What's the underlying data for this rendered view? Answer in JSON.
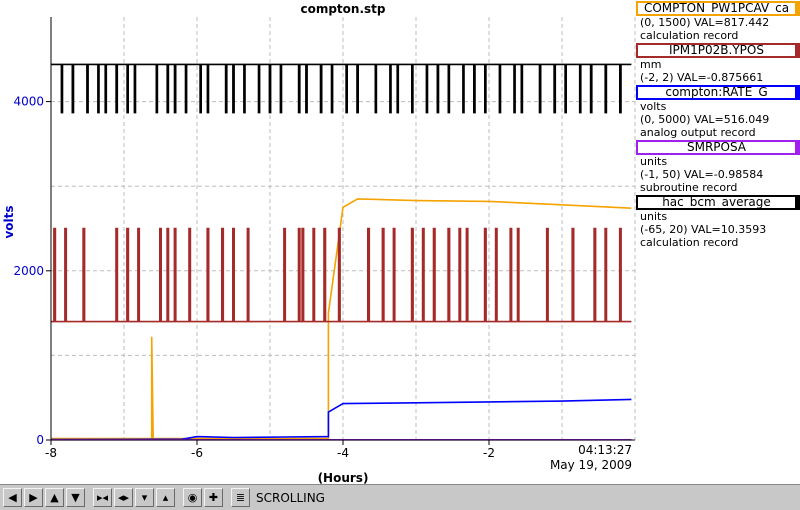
{
  "chart_data": {
    "type": "line",
    "title": "compton.stp",
    "xlabel": "(Hours)",
    "ylabel": "volts",
    "xlim": [
      -8,
      0
    ],
    "ylim": [
      0,
      5000
    ],
    "x_ticks": [
      -8,
      -6,
      -4,
      -2
    ],
    "y_ticks": [
      0,
      2000,
      4000
    ],
    "grid": true,
    "end_time": "04:13:27",
    "end_date": "May 19, 2009",
    "series": [
      {
        "name": "COMPTON_PW1PCAV_ca",
        "color": "#f5a300",
        "points": [
          [
            -8,
            17
          ],
          [
            -6.62,
            17
          ],
          [
            -6.62,
            1220
          ],
          [
            -6.6,
            17
          ],
          [
            -4.2,
            17
          ],
          [
            -4.2,
            1500
          ],
          [
            -4.0,
            2750
          ],
          [
            -3.8,
            2850
          ],
          [
            -3.0,
            2830
          ],
          [
            -2.0,
            2820
          ],
          [
            -1.0,
            2780
          ],
          [
            -0.05,
            2740
          ]
        ]
      },
      {
        "name": "IPM1P02B.YPOS",
        "color": "#a52a2a",
        "base": 1400,
        "spike_top": 2500,
        "spikes": [
          -7.95,
          -7.8,
          -7.55,
          -7.1,
          -6.95,
          -6.8,
          -6.5,
          -6.4,
          -6.3,
          -6.1,
          -5.85,
          -5.65,
          -5.5,
          -5.3,
          -4.8,
          -4.6,
          -4.55,
          -4.4,
          -4.25,
          -4.05,
          -3.65,
          -3.45,
          -3.3,
          -3.05,
          -2.9,
          -2.75,
          -2.55,
          -2.4,
          -2.3,
          -2.05,
          -1.9,
          -1.7,
          -1.6,
          -1.2,
          -0.85,
          -0.55,
          -0.4,
          -0.2
        ]
      },
      {
        "name": "compton:RATE_G",
        "color": "#0000ff",
        "points": [
          [
            -8,
            5
          ],
          [
            -6.2,
            10
          ],
          [
            -6.0,
            40
          ],
          [
            -5.5,
            30
          ],
          [
            -4.8,
            35
          ],
          [
            -4.2,
            40
          ],
          [
            -4.2,
            330
          ],
          [
            -4.0,
            430
          ],
          [
            -3.0,
            440
          ],
          [
            -2.0,
            450
          ],
          [
            -1.0,
            460
          ],
          [
            -0.05,
            480
          ]
        ]
      },
      {
        "name": "SMRPOSA",
        "color": "#a020f0",
        "points": [
          [
            -8,
            2
          ],
          [
            -0.05,
            2
          ]
        ]
      },
      {
        "name": "hac_bcm_average",
        "color": "#000000",
        "base": 4440,
        "dip_bottom": 3870,
        "dips": [
          -7.85,
          -7.7,
          -7.5,
          -7.35,
          -7.25,
          -7.1,
          -6.95,
          -6.85,
          -6.55,
          -6.4,
          -6.3,
          -6.15,
          -5.95,
          -5.85,
          -5.6,
          -5.5,
          -5.35,
          -5.15,
          -5.0,
          -4.85,
          -4.6,
          -4.5,
          -4.3,
          -4.15,
          -3.95,
          -3.8,
          -3.55,
          -3.35,
          -3.25,
          -3.05,
          -2.85,
          -2.7,
          -2.55,
          -2.35,
          -2.2,
          -2.05,
          -1.85,
          -1.65,
          -1.55,
          -1.3,
          -1.1,
          -0.95,
          -0.75,
          -0.6,
          -0.4,
          -0.2
        ]
      }
    ]
  },
  "legend": [
    {
      "name": "COMPTON_PW1PCAV_ca",
      "color": "#f5a300",
      "lines": [
        "(0, 1500) VAL=817.442",
        "calculation record"
      ]
    },
    {
      "name": "IPM1P02B.YPOS",
      "color": "#a52a2a",
      "lines": [
        "mm",
        "(-2, 2) VAL=-0.875661"
      ]
    },
    {
      "name": "compton:RATE_G",
      "color": "#0000ff",
      "lines": [
        "volts",
        "(0, 5000) VAL=516.049",
        "analog output record"
      ]
    },
    {
      "name": "SMRPOSA",
      "color": "#a020f0",
      "lines": [
        "units",
        "(-1, 50) VAL=-0.98584",
        "subroutine record"
      ]
    },
    {
      "name": "hac_bcm_average",
      "color": "#000000",
      "lines": [
        "units",
        "(-65, 20) VAL=10.3593",
        "calculation record"
      ]
    }
  ],
  "toolbar": {
    "buttons": [
      "arrow-left-icon",
      "arrow-right-icon",
      "arrow-up-icon",
      "arrow-down-icon",
      "zoom-in-x-icon",
      "zoom-out-x-icon",
      "zoom-in-y-icon",
      "zoom-out-y-icon",
      "reset-icon",
      "add-icon",
      "toggle-icon"
    ],
    "status": "SCROLLING"
  }
}
